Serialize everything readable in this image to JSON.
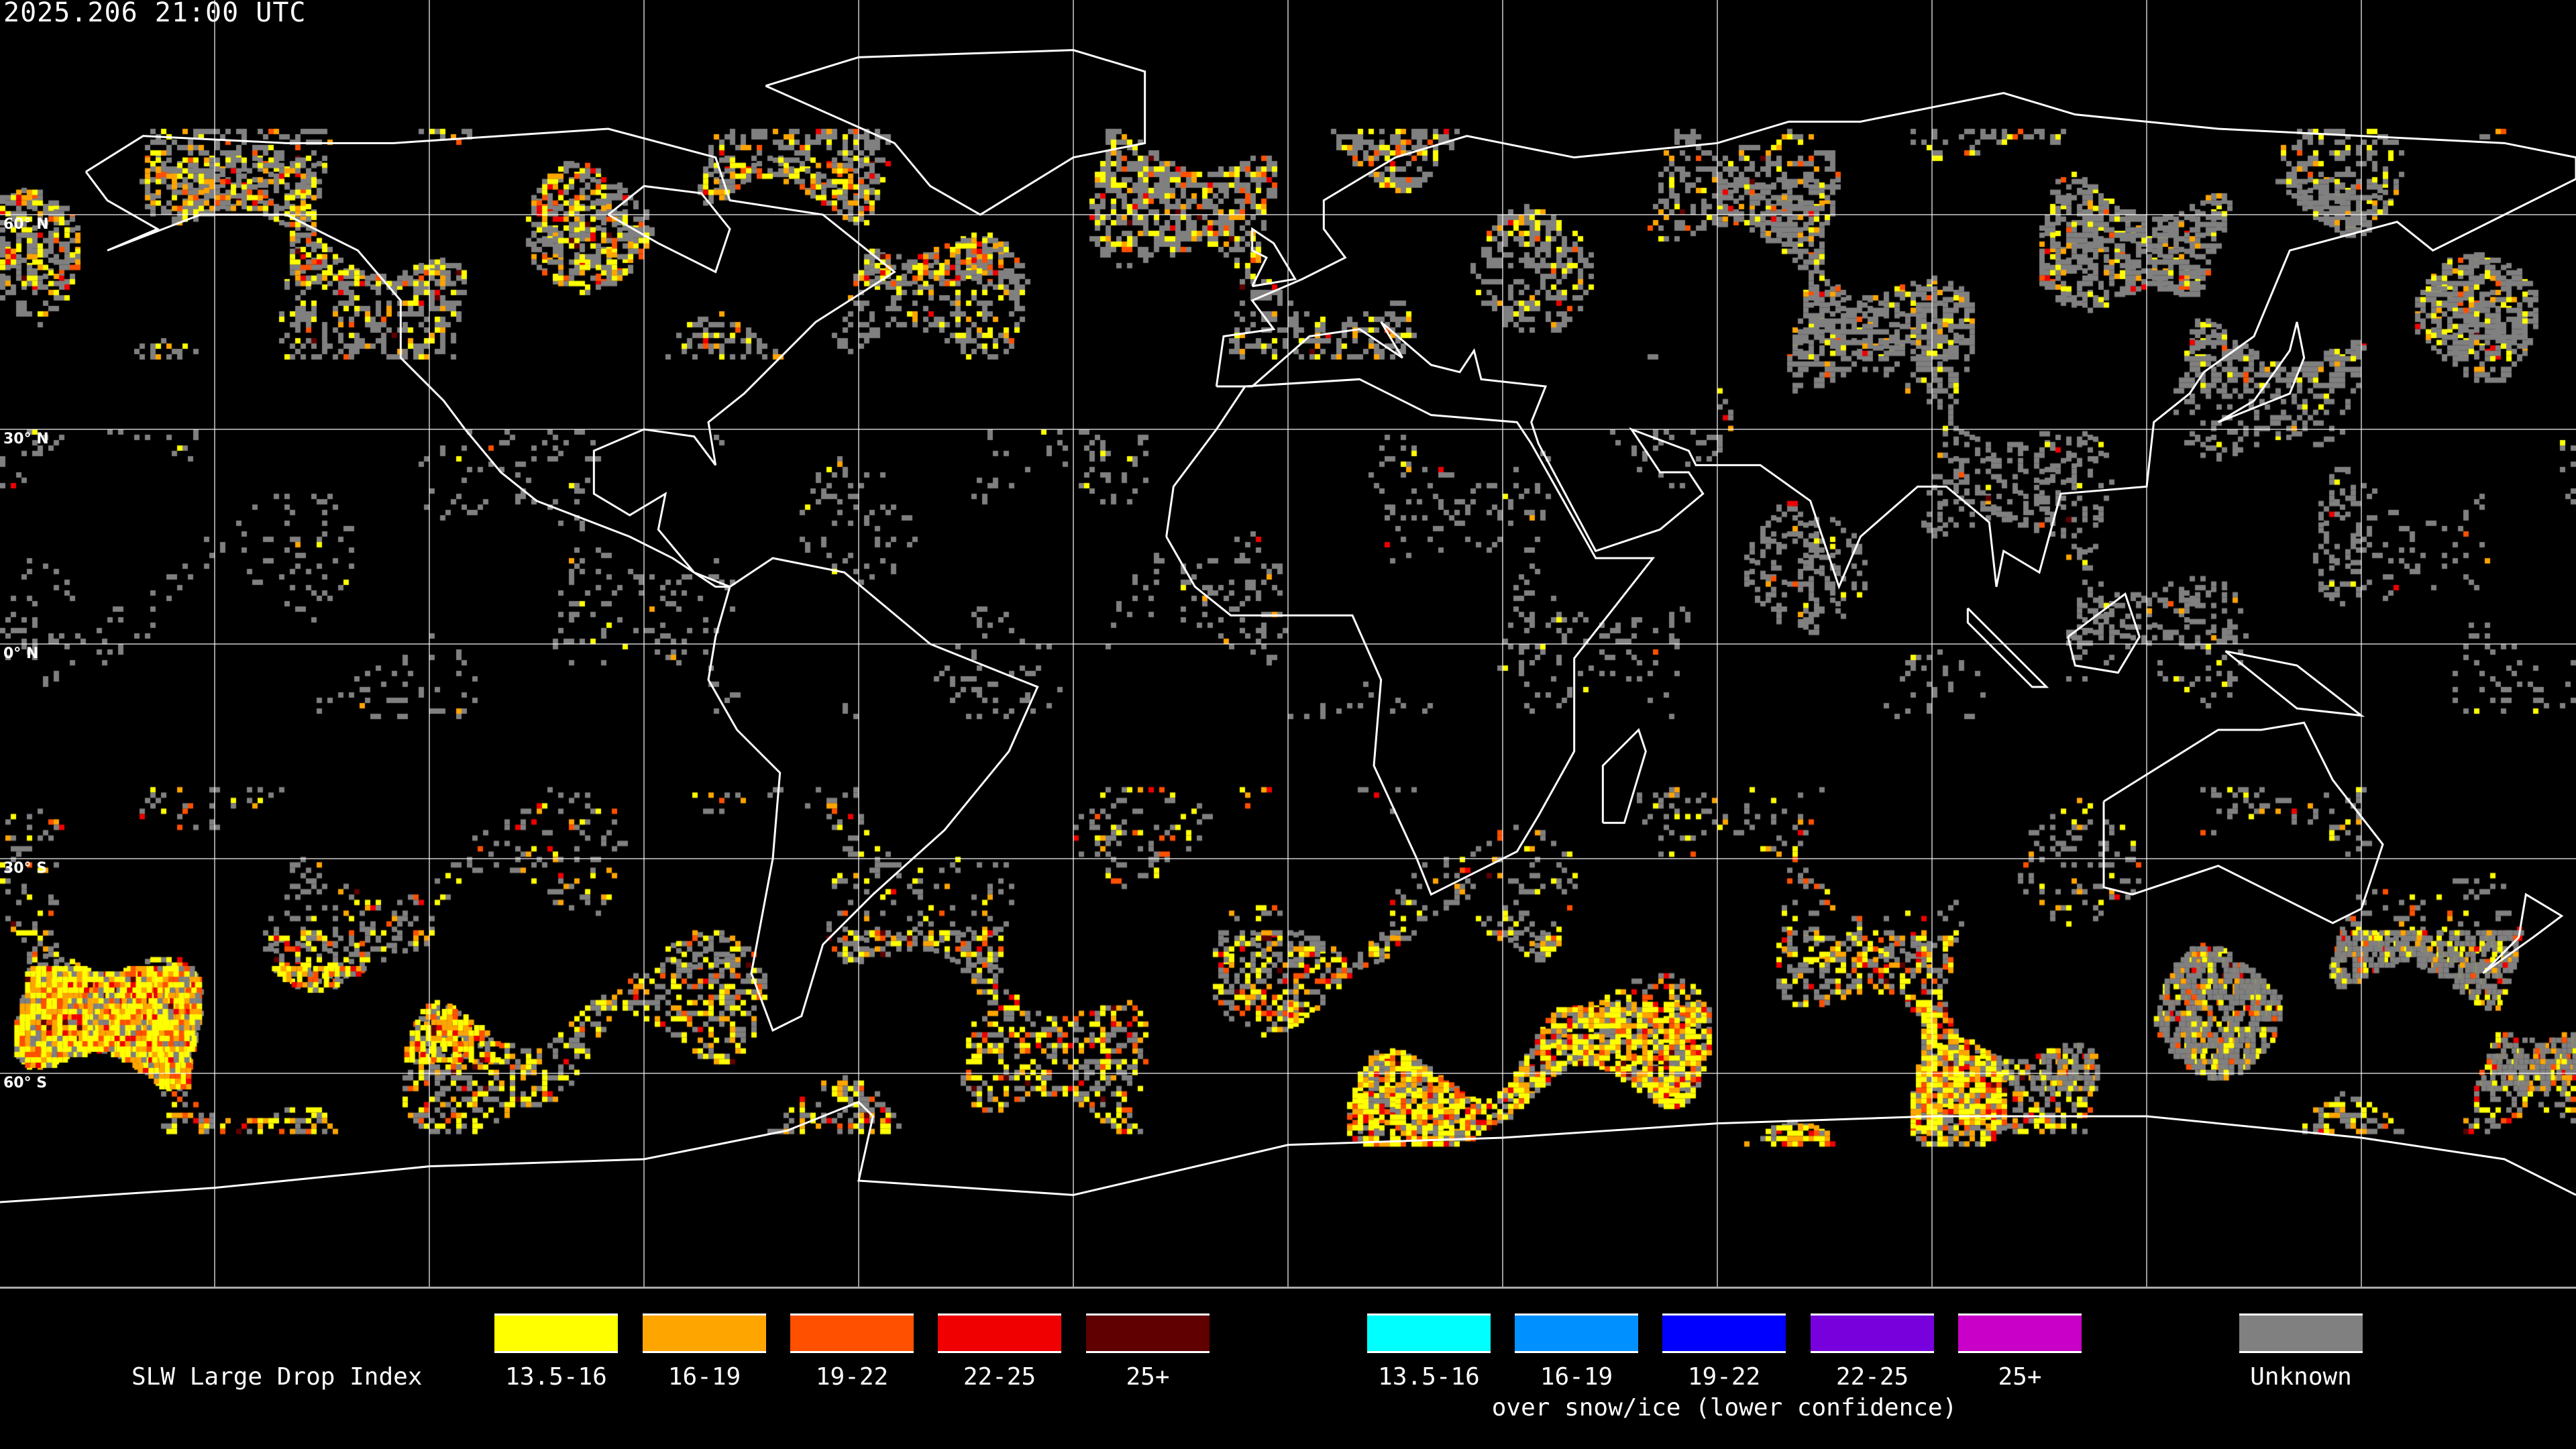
{
  "header": {
    "timestamp": "2025.206 21:00 UTC"
  },
  "map": {
    "projection": "equirectangular",
    "graticule_degrees": 30,
    "lat_labels": [
      "60° N",
      "30° N",
      "0° N",
      "30° S",
      "60° S"
    ],
    "colors": {
      "coastline": "#ffffff",
      "grid": "#ffffff",
      "background": "#000000"
    }
  },
  "legend": {
    "title": "SLW Large Drop Index",
    "standard": [
      {
        "label": "13.5-16",
        "color": "#ffff00"
      },
      {
        "label": "16-19",
        "color": "#ffa500"
      },
      {
        "label": "19-22",
        "color": "#ff5000"
      },
      {
        "label": "22-25",
        "color": "#f00000"
      },
      {
        "label": "25+",
        "color": "#600000"
      }
    ],
    "snow_ice": [
      {
        "label": "13.5-16",
        "color": "#00ffff"
      },
      {
        "label": "16-19",
        "color": "#0090ff"
      },
      {
        "label": "19-22",
        "color": "#0000ff"
      },
      {
        "label": "22-25",
        "color": "#7800dc"
      },
      {
        "label": "25+",
        "color": "#c800c8"
      }
    ],
    "snow_ice_caption": "over snow/ice (lower confidence)",
    "unknown": {
      "label": "Unknown",
      "color": "#808080"
    }
  }
}
